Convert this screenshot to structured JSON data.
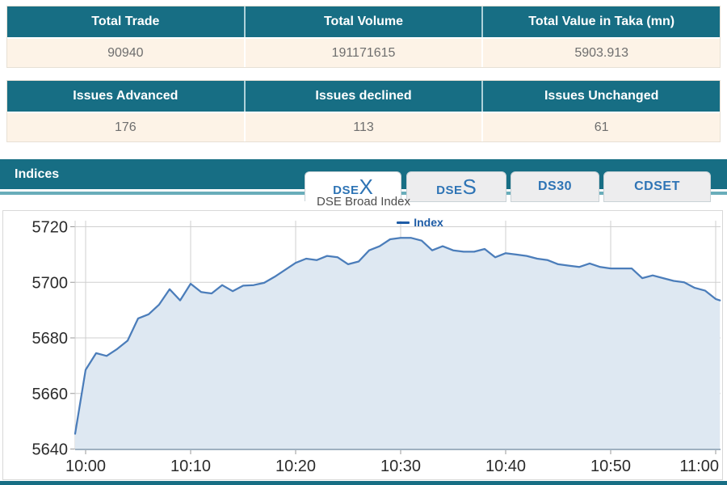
{
  "summary_tables": [
    {
      "headers": [
        "Total Trade",
        "Total Volume",
        "Total Value in Taka (mn)"
      ],
      "values": [
        "90940",
        "191171615",
        "5903.913"
      ]
    },
    {
      "headers": [
        "Issues Advanced",
        "Issues declined",
        "Issues Unchanged"
      ],
      "values": [
        "176",
        "113",
        "61"
      ]
    }
  ],
  "indices_section": {
    "title": "Indices",
    "tabs": [
      {
        "label_prefix": "DSE",
        "label_suffix": "X",
        "active": true
      },
      {
        "label_prefix": "DSE",
        "label_suffix": "S",
        "active": false
      },
      {
        "label_prefix": "DS30",
        "label_suffix": "",
        "active": false
      },
      {
        "label_prefix": "CDSET",
        "label_suffix": "",
        "active": false
      }
    ]
  },
  "chart_data": {
    "type": "area",
    "title": "DSE Broad Index",
    "legend": {
      "label": "Index",
      "position": "top-center"
    },
    "x_minutes_from_10am": [
      -1,
      0,
      1,
      2,
      3,
      4,
      5,
      6,
      7,
      8,
      9,
      10,
      11,
      12,
      13,
      14,
      15,
      16,
      17,
      18,
      19,
      20,
      21,
      22,
      23,
      24,
      25,
      26,
      27,
      28,
      29,
      30,
      31,
      32,
      33,
      34,
      35,
      36,
      37,
      38,
      39,
      40,
      41,
      42,
      43,
      44,
      45,
      46,
      47,
      48,
      49,
      50,
      51,
      52,
      53,
      54,
      55,
      56,
      57,
      58,
      59,
      60,
      60.4
    ],
    "values": [
      5645.5,
      5668.5,
      5674.5,
      5673.5,
      5676,
      5679,
      5687,
      5688.5,
      5692,
      5697.5,
      5693.5,
      5699.5,
      5696.5,
      5696,
      5699,
      5696.8,
      5698.8,
      5699,
      5699.8,
      5702,
      5704.5,
      5707,
      5708.5,
      5708,
      5709.5,
      5709,
      5706.5,
      5707.5,
      5711.5,
      5713,
      5715.5,
      5716,
      5716,
      5715,
      5711.5,
      5713,
      5711.5,
      5711,
      5711,
      5712,
      5709,
      5710.5,
      5710,
      5709.5,
      5708.5,
      5708,
      5706.5,
      5706,
      5705.5,
      5706.8,
      5705.5,
      5705,
      5705,
      5705,
      5701.5,
      5702.5,
      5701.5,
      5700.5,
      5700,
      5698,
      5697,
      5694,
      5693.5
    ],
    "x_ticks": [
      {
        "m": 0,
        "label": "10:00"
      },
      {
        "m": 10,
        "label": "10:10"
      },
      {
        "m": 20,
        "label": "10:20"
      },
      {
        "m": 30,
        "label": "10:30"
      },
      {
        "m": 40,
        "label": "10:40"
      },
      {
        "m": 50,
        "label": "10:50"
      },
      {
        "m": 60,
        "label": "11:00"
      }
    ],
    "y_ticks": [
      5640,
      5660,
      5680,
      5700,
      5720
    ],
    "ylim": [
      5640,
      5723
    ],
    "grid": true,
    "legend_position": "top-center",
    "line_color": "#4b7dba",
    "fill_color": "#dee8f2",
    "grid_color": "#cfcfcf",
    "axis_line_color": "#9fb1c1",
    "tick_label_color": "#2b2b2b"
  },
  "colors": {
    "header_teal": "#176e84",
    "underline_teal": "#69adba",
    "row_cream": "#fdf3e7",
    "tab_blue": "#2e74b5"
  }
}
